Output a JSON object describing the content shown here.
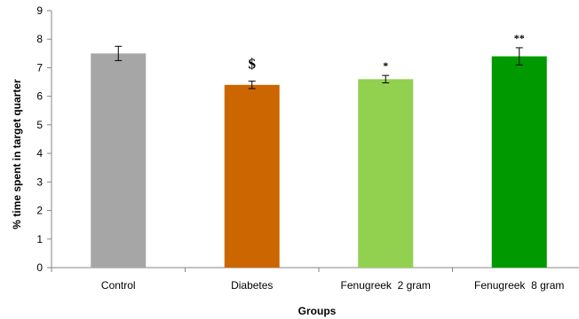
{
  "chart_data": {
    "type": "bar",
    "title": "",
    "xlabel": "Groups",
    "ylabel": "% time spent in target quarter",
    "ylim": [
      0,
      9
    ],
    "yticks": [
      0,
      1,
      2,
      3,
      4,
      5,
      6,
      7,
      8,
      9
    ],
    "grid": false,
    "legend": "none",
    "categories": [
      "Control",
      "Diabetes",
      "Fenugreek  2 gram",
      "Fenugreek  8 gram"
    ],
    "values": [
      7.5,
      6.4,
      6.6,
      7.4
    ],
    "errors": [
      0.25,
      0.13,
      0.13,
      0.3
    ],
    "annotations": [
      "",
      "$",
      "*",
      "**"
    ],
    "colors": [
      "#a6a6a6",
      "#cc6600",
      "#92d050",
      "#009900"
    ]
  }
}
